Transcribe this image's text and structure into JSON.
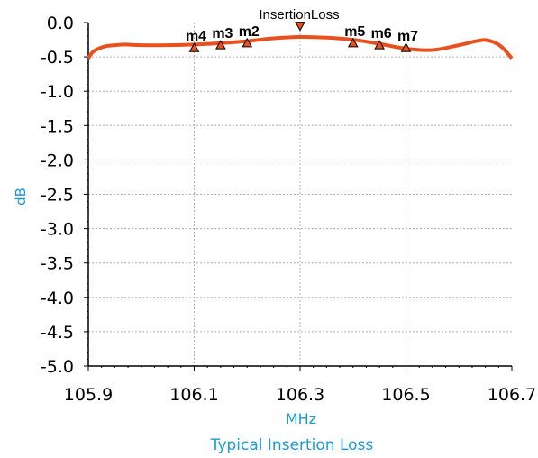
{
  "chart_data": {
    "type": "line",
    "title": "InsertionLoss",
    "caption": "Typical Insertion Loss",
    "xlabel": "MHz",
    "ylabel": "dB",
    "xlim": [
      105.9,
      106.7
    ],
    "ylim": [
      -5.0,
      0.0
    ],
    "xticks": [
      "105.9",
      "106.1",
      "106.3",
      "106.5",
      "106.7"
    ],
    "xtick_values": [
      105.9,
      106.1,
      106.3,
      106.5,
      106.7
    ],
    "yticks": [
      "0.0",
      "-0.5",
      "-1.0",
      "-1.5",
      "-2.0",
      "-2.5",
      "-3.0",
      "-3.5",
      "-4.0",
      "-4.5",
      "-5.0"
    ],
    "ytick_values": [
      0.0,
      -0.5,
      -1.0,
      -1.5,
      -2.0,
      -2.5,
      -3.0,
      -3.5,
      -4.0,
      -4.5,
      -5.0
    ],
    "grid": true,
    "line_color": "#e8501e",
    "marker_color": "#e8501e",
    "series": [
      {
        "x": [
          105.9,
          105.91,
          105.93,
          105.95,
          105.97,
          106.0,
          106.05,
          106.1,
          106.15,
          106.2,
          106.25,
          106.3,
          106.35,
          106.4,
          106.45,
          106.5,
          106.55,
          106.6,
          106.64,
          106.66,
          106.68,
          106.7
        ],
        "y": [
          -0.52,
          -0.42,
          -0.35,
          -0.33,
          -0.32,
          -0.33,
          -0.33,
          -0.32,
          -0.3,
          -0.27,
          -0.23,
          -0.21,
          -0.22,
          -0.25,
          -0.31,
          -0.38,
          -0.4,
          -0.33,
          -0.26,
          -0.27,
          -0.35,
          -0.52
        ]
      }
    ],
    "markers": [
      {
        "label": "m4",
        "x": 106.1,
        "y": -0.37,
        "dir": "up"
      },
      {
        "label": "m3",
        "x": 106.15,
        "y": -0.33,
        "dir": "up"
      },
      {
        "label": "m2",
        "x": 106.2,
        "y": -0.3,
        "dir": "up"
      },
      {
        "label": "",
        "x": 106.3,
        "y": -0.06,
        "dir": "down"
      },
      {
        "label": "m5",
        "x": 106.4,
        "y": -0.3,
        "dir": "up"
      },
      {
        "label": "m6",
        "x": 106.45,
        "y": -0.33,
        "dir": "up"
      },
      {
        "label": "m7",
        "x": 106.5,
        "y": -0.37,
        "dir": "up"
      }
    ]
  }
}
